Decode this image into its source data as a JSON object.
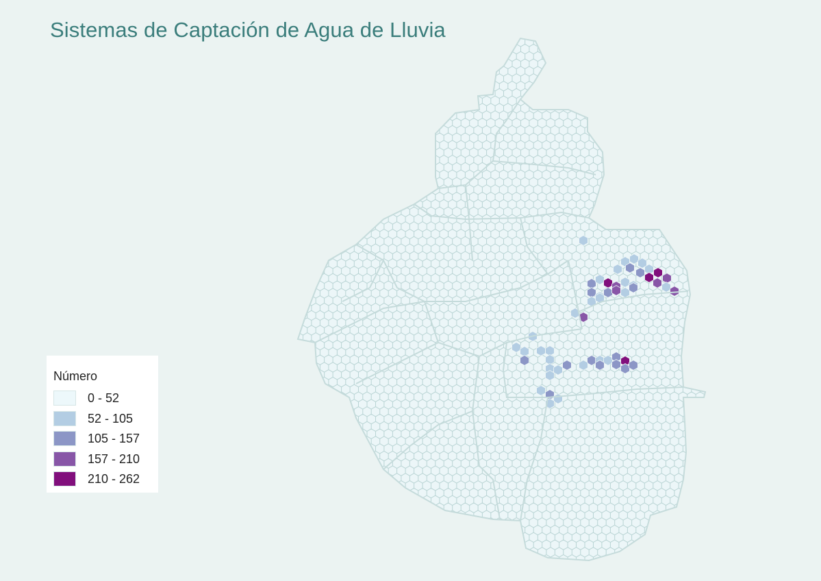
{
  "map": {
    "title": "Sistemas de Captación de Agua de Lluvia",
    "base_hex_fill": "#ecf6f8",
    "hex_stroke": "#b9d4d4",
    "boundary_stroke": "#c9dede",
    "legend": {
      "title": "Número",
      "items": [
        {
          "label": "0 - 52",
          "color": "#edf8fb"
        },
        {
          "label": "52 - 105",
          "color": "#b3cde3"
        },
        {
          "label": "105 - 157",
          "color": "#8c96c6"
        },
        {
          "label": "157 - 210",
          "color": "#8856a7"
        },
        {
          "label": "210 - 262",
          "color": "#810f7c"
        }
      ]
    }
  }
}
